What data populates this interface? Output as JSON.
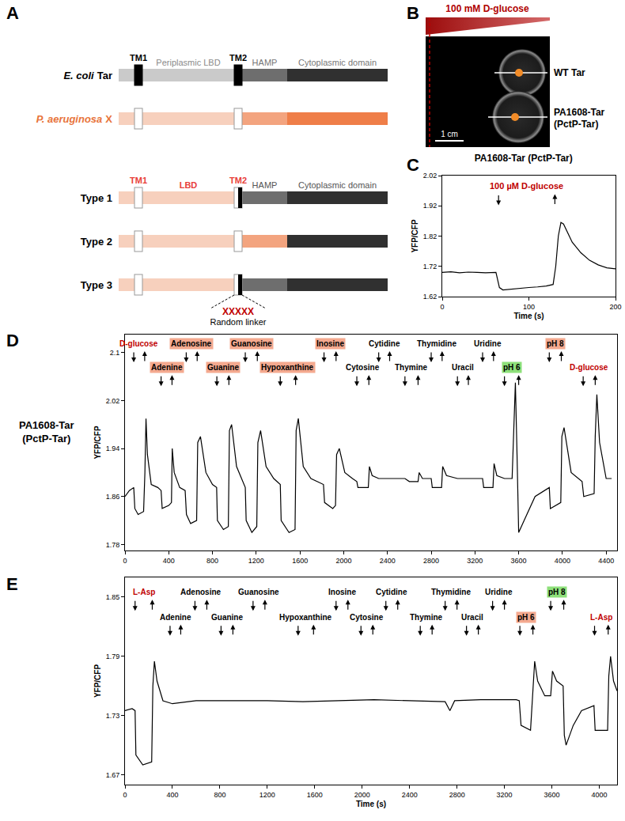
{
  "panel_labels": [
    "A",
    "B",
    "C",
    "D",
    "E"
  ],
  "diagram_A": {
    "ecoli": {
      "species": "E. coli",
      "protein": "Tar",
      "tm1": "TM1",
      "tm2": "TM2",
      "lbd": "Periplasmic LBD",
      "hamp": "HAMP",
      "cyto": "Cytoplasmic domain"
    },
    "paeruginosa": {
      "species": "P. aeruginosa",
      "protein": "X"
    },
    "types": [
      {
        "name": "Type 1",
        "tm1": "TM1",
        "lbd": "LBD",
        "tm2": "TM2",
        "hamp": "HAMP",
        "cyto": "Cytoplasmic domain"
      },
      {
        "name": "Type 2"
      },
      {
        "name": "Type 3",
        "linker": "XXXXX",
        "linker_label": "Random linker"
      }
    ]
  },
  "image_B": {
    "gradient_label": "100 mM D-glucose",
    "strains": [
      {
        "lines": [
          "WT Tar"
        ]
      },
      {
        "lines": [
          "PA1608-Tar",
          "(PctP-Tar)"
        ]
      }
    ],
    "scale_bar": "1 cm"
  },
  "chart_data": [
    {
      "type": "line",
      "title": "PA1608-Tar (PctP-Tar)",
      "x_label": "Time (s)",
      "y_label": "YFP/CFP",
      "color": "#000000",
      "grid": false,
      "x": [
        0,
        10,
        20,
        30,
        40,
        50,
        62,
        66,
        70,
        80,
        90,
        100,
        110,
        120,
        128,
        131,
        134,
        137,
        140,
        145,
        150,
        160,
        170,
        180,
        190,
        200
      ],
      "values": [
        1.7,
        1.702,
        1.699,
        1.701,
        1.7,
        1.699,
        1.7,
        1.65,
        1.642,
        1.645,
        1.648,
        1.65,
        1.652,
        1.655,
        1.66,
        1.72,
        1.82,
        1.865,
        1.86,
        1.83,
        1.8,
        1.765,
        1.74,
        1.725,
        1.715,
        1.712
      ],
      "xlim": [
        0,
        200
      ],
      "xticks": [
        0,
        100,
        200
      ],
      "ylim": [
        1.62,
        2.02
      ],
      "yticks": [
        1.62,
        1.72,
        1.82,
        1.92,
        2.02
      ],
      "stimuli": [
        {
          "label": "100 µM D-glucose",
          "on": 65,
          "off": 130,
          "color": "#c00000",
          "marker": "text"
        }
      ]
    },
    {
      "type": "line",
      "side_label": [
        "PA1608-Tar",
        "(PctP-Tar)"
      ],
      "y_label": "YFP/CFP",
      "color": "#000000",
      "grid": false,
      "x": [
        0,
        40,
        80,
        90,
        120,
        170,
        182,
        192,
        205,
        240,
        300,
        330,
        340,
        400,
        425,
        432,
        450,
        500,
        550,
        562,
        600,
        655,
        665,
        690,
        740,
        800,
        838,
        845,
        900,
        945,
        955,
        975,
        1020,
        1080,
        1100,
        1108,
        1160,
        1205,
        1215,
        1240,
        1290,
        1360,
        1420,
        1428,
        1500,
        1555,
        1565,
        1585,
        1630,
        1700,
        1815,
        1825,
        1900,
        1925,
        1935,
        1960,
        2010,
        2080,
        2120,
        2130,
        2225,
        2235,
        2260,
        2320,
        2420,
        2560,
        2600,
        2680,
        2690,
        2720,
        2800,
        2810,
        2895,
        2905,
        2940,
        3040,
        3140,
        3270,
        3280,
        3365,
        3375,
        3400,
        3470,
        3540,
        3555,
        3570,
        3585,
        3600,
        3650,
        3750,
        3880,
        3890,
        3985,
        3995,
        4015,
        4080,
        4180,
        4195,
        4290,
        4300,
        4315,
        4340,
        4400,
        4450
      ],
      "values": [
        1.86,
        1.87,
        1.875,
        1.84,
        1.83,
        1.835,
        1.9,
        1.99,
        1.93,
        1.88,
        1.875,
        1.87,
        1.84,
        1.845,
        1.85,
        1.94,
        1.9,
        1.875,
        1.87,
        1.83,
        1.815,
        1.82,
        1.95,
        1.96,
        1.9,
        1.88,
        1.875,
        1.82,
        1.805,
        1.81,
        1.97,
        1.98,
        1.91,
        1.885,
        1.875,
        1.82,
        1.8,
        1.81,
        1.95,
        1.97,
        1.91,
        1.89,
        1.88,
        1.82,
        1.8,
        1.805,
        1.97,
        1.99,
        1.91,
        1.89,
        1.88,
        1.85,
        1.84,
        1.845,
        1.93,
        1.94,
        1.9,
        1.89,
        1.885,
        1.875,
        1.875,
        1.91,
        1.895,
        1.89,
        1.89,
        1.89,
        1.885,
        1.885,
        1.9,
        1.89,
        1.89,
        1.875,
        1.875,
        1.91,
        1.895,
        1.89,
        1.89,
        1.89,
        1.875,
        1.875,
        1.915,
        1.895,
        1.89,
        1.89,
        1.97,
        2.05,
        1.93,
        1.8,
        1.82,
        1.86,
        1.875,
        1.84,
        1.85,
        1.96,
        1.975,
        1.9,
        1.885,
        1.86,
        1.865,
        1.96,
        2.03,
        1.95,
        1.89,
        1.89
      ],
      "xlim": [
        0,
        4500
      ],
      "xticks": [
        0,
        400,
        800,
        1200,
        1600,
        2000,
        2400,
        2800,
        3200,
        3600,
        4000,
        4400
      ],
      "ylim": [
        1.77,
        2.13
      ],
      "yticks": [
        1.78,
        1.86,
        1.94,
        2.02,
        2.1
      ],
      "stimuli": [
        {
          "label": "D-glucose",
          "on": 80,
          "off": 180,
          "color": "#c00000",
          "marker": "text"
        },
        {
          "label": "Adenine",
          "on": 330,
          "off": 430,
          "color": "#f4a98f",
          "marker": "box"
        },
        {
          "label": "Adenosine",
          "on": 560,
          "off": 660,
          "color": "#f4a98f",
          "marker": "box"
        },
        {
          "label": "Guanine",
          "on": 840,
          "off": 950,
          "color": "#f4a98f",
          "marker": "box"
        },
        {
          "label": "Guanosine",
          "on": 1100,
          "off": 1210,
          "color": "#f4a98f",
          "marker": "box"
        },
        {
          "label": "Hypoxanthine",
          "on": 1420,
          "off": 1560,
          "color": "#f4a98f",
          "marker": "box"
        },
        {
          "label": "Inosine",
          "on": 1820,
          "off": 1930,
          "color": "#f4a98f",
          "marker": "box"
        },
        {
          "label": "Cytosine",
          "on": 2120,
          "off": 2230
        },
        {
          "label": "Cytidine",
          "on": 2320,
          "off": 2420
        },
        {
          "label": "Thymine",
          "on": 2560,
          "off": 2680
        },
        {
          "label": "Thymidine",
          "on": 2800,
          "off": 2900
        },
        {
          "label": "Uracil",
          "on": 3040,
          "off": 3140
        },
        {
          "label": "Uridine",
          "on": 3270,
          "off": 3370
        },
        {
          "label": "pH 6",
          "on": 3470,
          "off": 3600,
          "color": "#8ee07a",
          "marker": "box"
        },
        {
          "label": "pH 8",
          "on": 3880,
          "off": 3990,
          "color": "#f4a98f",
          "marker": "box"
        },
        {
          "label": "D-glucose",
          "on": 4190,
          "off": 4300,
          "color": "#c00000",
          "marker": "text"
        }
      ]
    },
    {
      "type": "line",
      "x_label": "Time (s)",
      "y_label": "YFP/CFP",
      "color": "#000000",
      "grid": false,
      "x": [
        0,
        60,
        85,
        92,
        150,
        225,
        235,
        248,
        270,
        320,
        400,
        600,
        900,
        1200,
        1500,
        1800,
        2100,
        2400,
        2700,
        2740,
        2780,
        3000,
        3300,
        3325,
        3340,
        3420,
        3440,
        3455,
        3480,
        3540,
        3590,
        3605,
        3640,
        3695,
        3705,
        3720,
        3780,
        3850,
        3955,
        3965,
        4070,
        4080,
        4095,
        4120,
        4150
      ],
      "values": [
        1.735,
        1.737,
        1.735,
        1.69,
        1.68,
        1.683,
        1.76,
        1.785,
        1.765,
        1.745,
        1.742,
        1.745,
        1.745,
        1.745,
        1.744,
        1.745,
        1.746,
        1.745,
        1.744,
        1.735,
        1.745,
        1.746,
        1.746,
        1.745,
        1.72,
        1.715,
        1.76,
        1.785,
        1.765,
        1.75,
        1.75,
        1.775,
        1.765,
        1.76,
        1.71,
        1.7,
        1.72,
        1.735,
        1.74,
        1.715,
        1.715,
        1.77,
        1.79,
        1.765,
        1.755
      ],
      "xlim": [
        0,
        4150
      ],
      "xticks": [
        0,
        400,
        800,
        1200,
        1600,
        2000,
        2400,
        2800,
        3200,
        3600,
        4000
      ],
      "ylim": [
        1.66,
        1.87
      ],
      "yticks": [
        1.67,
        1.73,
        1.79,
        1.85
      ],
      "stimuli": [
        {
          "label": "L-Asp",
          "on": 85,
          "off": 230,
          "color": "#c00000",
          "marker": "text"
        },
        {
          "label": "Adenine",
          "on": 380,
          "off": 470
        },
        {
          "label": "Adenosine",
          "on": 590,
          "off": 690
        },
        {
          "label": "Guanine",
          "on": 810,
          "off": 910
        },
        {
          "label": "Guanosine",
          "on": 1080,
          "off": 1180
        },
        {
          "label": "Hypoxanthine",
          "on": 1460,
          "off": 1590
        },
        {
          "label": "Inosine",
          "on": 1780,
          "off": 1880
        },
        {
          "label": "Cytosine",
          "on": 1990,
          "off": 2090
        },
        {
          "label": "Cytidine",
          "on": 2200,
          "off": 2300
        },
        {
          "label": "Thymine",
          "on": 2490,
          "off": 2590
        },
        {
          "label": "Thymidine",
          "on": 2700,
          "off": 2800
        },
        {
          "label": "Uracil",
          "on": 2880,
          "off": 2980
        },
        {
          "label": "Uridine",
          "on": 3100,
          "off": 3200
        },
        {
          "label": "pH 6",
          "on": 3330,
          "off": 3440,
          "color": "#f4a98f",
          "marker": "box"
        },
        {
          "label": "pH 8",
          "on": 3590,
          "off": 3700,
          "color": "#8ee07a",
          "marker": "box"
        },
        {
          "label": "L-Asp",
          "on": 3960,
          "off": 4075,
          "color": "#c00000",
          "marker": "text"
        }
      ]
    }
  ]
}
